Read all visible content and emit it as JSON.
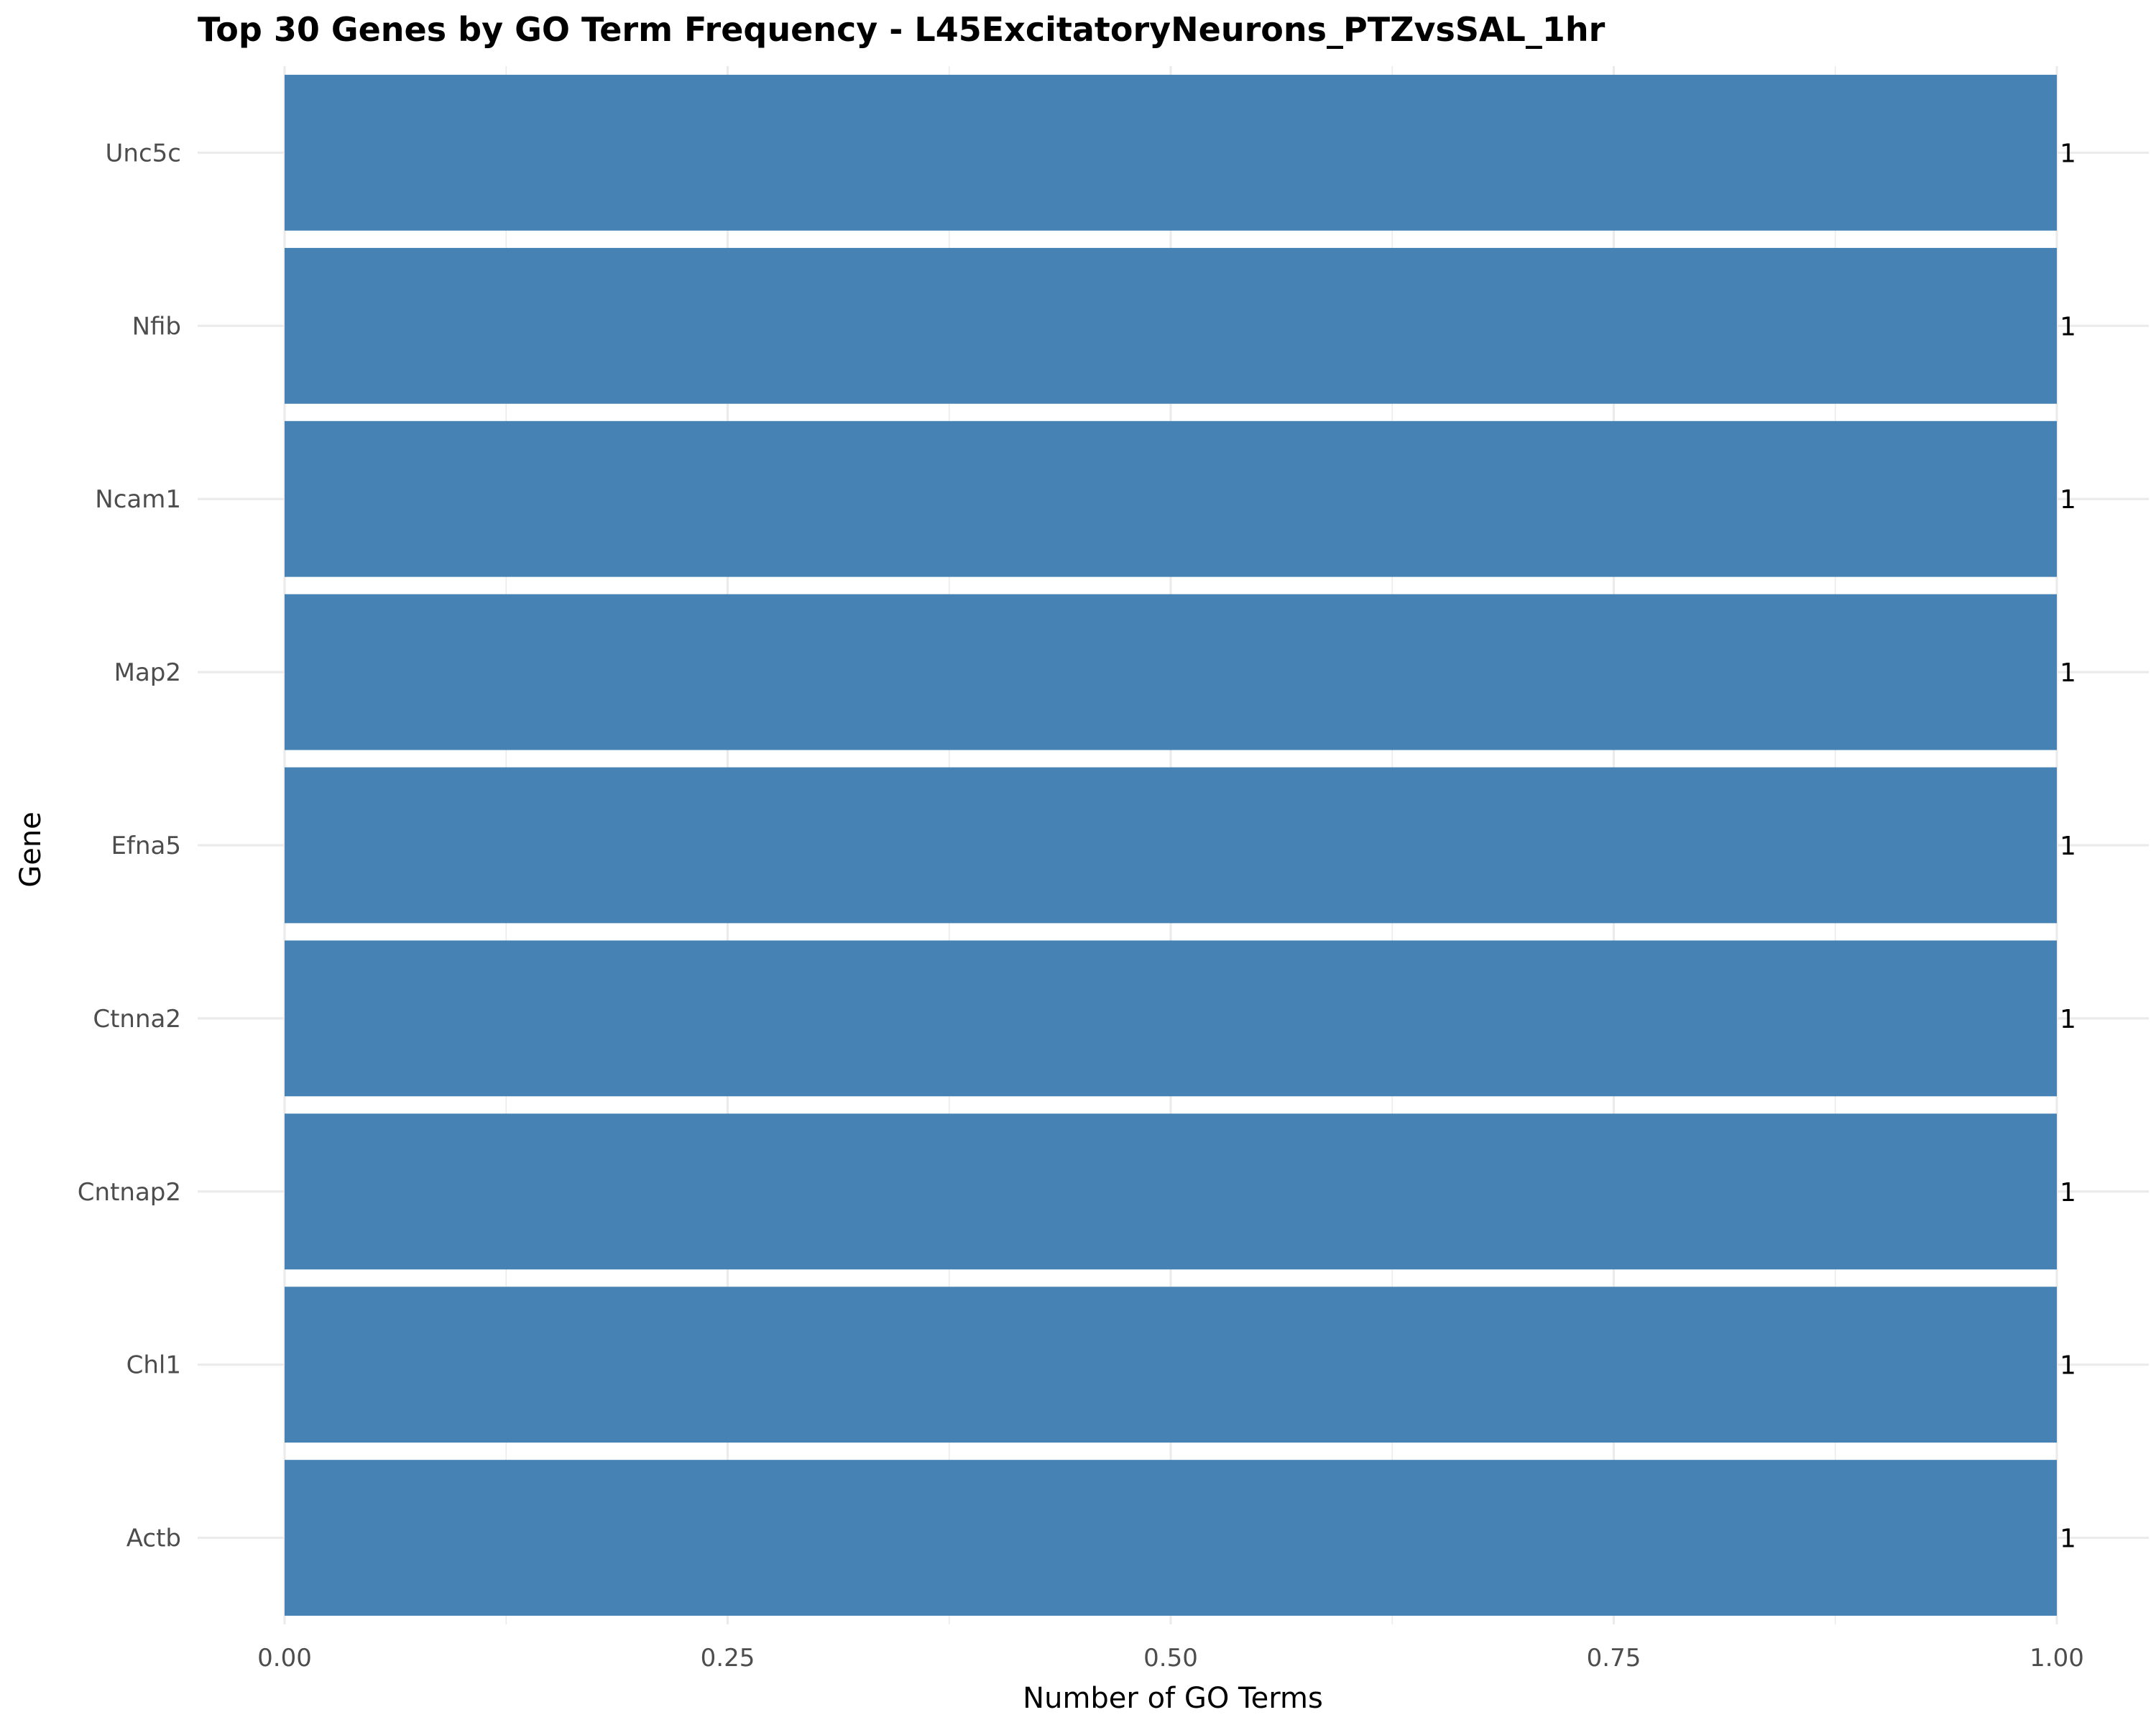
{
  "chart_data": {
    "type": "bar",
    "orientation": "horizontal",
    "title": "Top 30 Genes by GO Term Frequency - L45ExcitatoryNeurons_PTZvsSAL_1hr",
    "xlabel": "Number of GO Terms",
    "ylabel": "Gene",
    "categories": [
      "Unc5c",
      "Nfib",
      "Ncam1",
      "Map2",
      "Efna5",
      "Ctnna2",
      "Cntnap2",
      "Chl1",
      "Actb"
    ],
    "values": [
      1,
      1,
      1,
      1,
      1,
      1,
      1,
      1,
      1
    ],
    "data_labels": [
      "1",
      "1",
      "1",
      "1",
      "1",
      "1",
      "1",
      "1",
      "1"
    ],
    "xlim": [
      0,
      1
    ],
    "x_ticks": [
      0,
      0.25,
      0.5,
      0.75,
      1
    ],
    "x_tick_labels": [
      "0.00",
      "0.25",
      "0.50",
      "0.75",
      "1.00"
    ],
    "grid": true,
    "colors": {
      "bar": "#4682b4",
      "grid": "#ebebeb"
    }
  }
}
